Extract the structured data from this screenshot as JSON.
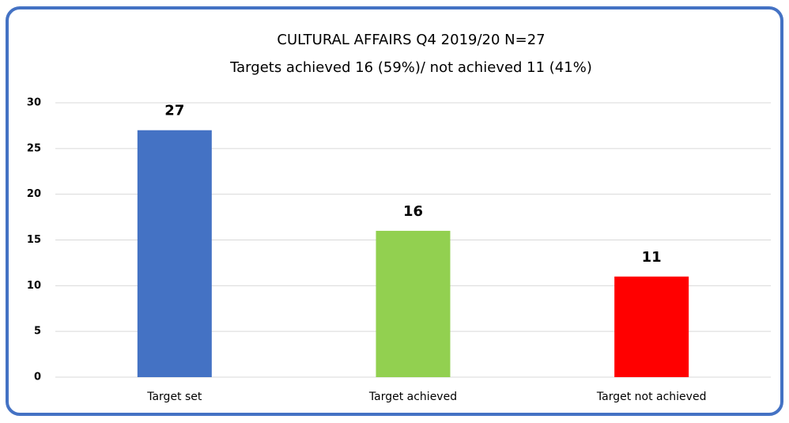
{
  "chart_data": {
    "type": "bar",
    "title": "CULTURAL AFFAIRS Q4 2019/20  N=27",
    "subtitle": "Targets achieved 16 (59%)/ not achieved 11 (41%)",
    "categories": [
      "Target set",
      "Target achieved",
      "Target not achieved"
    ],
    "values": [
      27,
      16,
      11
    ],
    "colors": [
      "#4472c4",
      "#92d050",
      "#ff0000"
    ],
    "ylim": [
      0,
      30
    ],
    "yticks": [
      0,
      5,
      10,
      15,
      20,
      25,
      30
    ],
    "grid": true
  }
}
